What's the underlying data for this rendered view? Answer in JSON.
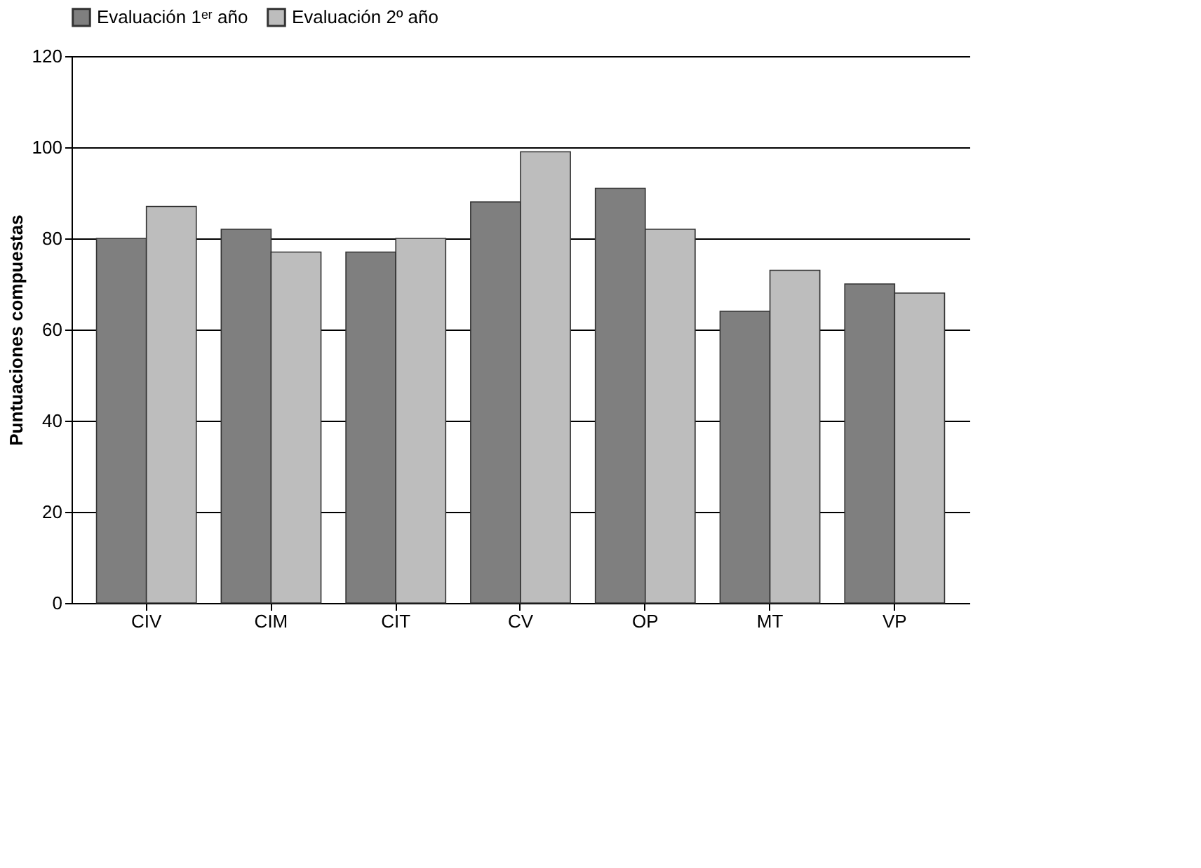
{
  "chart_data": {
    "type": "bar",
    "ylabel": "Puntuaciones compuestas",
    "categories": [
      "CIV",
      "CIM",
      "CIT",
      "CV",
      "OP",
      "MT",
      "VP"
    ],
    "series": [
      {
        "name": "Evaluación 1ᵉʳ año",
        "color": "#7f7f7f",
        "values": [
          80,
          82,
          77,
          88,
          91,
          64,
          70
        ]
      },
      {
        "name": "Evaluación 2º año",
        "color": "#bdbdbd",
        "values": [
          87,
          77,
          80,
          99,
          82,
          73,
          68
        ]
      }
    ],
    "ylim": [
      0,
      120
    ],
    "yticks": [
      0,
      20,
      40,
      60,
      80,
      100,
      120
    ],
    "grid": "y",
    "legend": "top"
  }
}
